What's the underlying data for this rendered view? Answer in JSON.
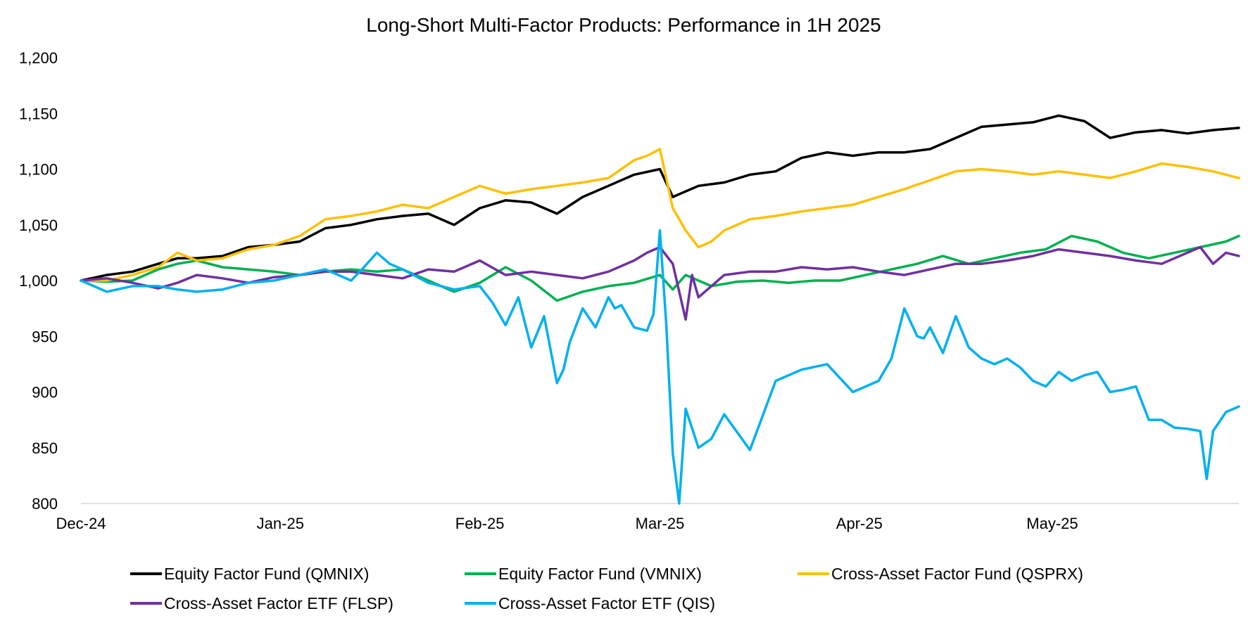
{
  "chart_data": {
    "type": "line",
    "title": "Long-Short Multi-Factor Products: Performance in 1H 2025",
    "xlabel": "",
    "ylabel": "",
    "ylim": [
      800,
      1200
    ],
    "yticks": [
      800,
      850,
      900,
      950,
      1000,
      1050,
      1100,
      1150,
      1200
    ],
    "ytick_labels": [
      "800",
      "850",
      "900",
      "950",
      "1,000",
      "1,050",
      "1,100",
      "1,150",
      "1,200"
    ],
    "xlim": [
      0,
      180
    ],
    "xticks": [
      {
        "x": 0,
        "label": "Dec-24"
      },
      {
        "x": 31,
        "label": "Jan-25"
      },
      {
        "x": 62,
        "label": "Feb-25"
      },
      {
        "x": 90,
        "label": "Mar-25"
      },
      {
        "x": 121,
        "label": "Apr-25"
      },
      {
        "x": 151,
        "label": "May-25"
      }
    ],
    "grid": false,
    "legend_position": "bottom",
    "series": [
      {
        "name": "Equity Factor Fund (QMNIX)",
        "color": "#000000",
        "x": [
          0,
          4,
          8,
          12,
          15,
          18,
          22,
          26,
          30,
          34,
          38,
          42,
          46,
          50,
          54,
          58,
          62,
          66,
          70,
          74,
          78,
          82,
          86,
          90,
          92,
          96,
          100,
          104,
          108,
          112,
          116,
          120,
          124,
          128,
          132,
          136,
          140,
          144,
          148,
          152,
          156,
          160,
          164,
          168,
          172,
          176,
          180
        ],
        "values": [
          1000,
          1005,
          1008,
          1015,
          1020,
          1020,
          1022,
          1030,
          1032,
          1035,
          1047,
          1050,
          1055,
          1058,
          1060,
          1050,
          1065,
          1072,
          1070,
          1060,
          1075,
          1085,
          1095,
          1100,
          1075,
          1085,
          1088,
          1095,
          1098,
          1110,
          1115,
          1112,
          1115,
          1115,
          1118,
          1128,
          1138,
          1140,
          1142,
          1148,
          1143,
          1128,
          1133,
          1135,
          1132,
          1135,
          1137
        ]
      },
      {
        "name": "Equity Factor Fund (VMNIX)",
        "color": "#00b050",
        "x": [
          0,
          4,
          8,
          12,
          15,
          18,
          22,
          26,
          30,
          34,
          38,
          42,
          46,
          50,
          54,
          58,
          62,
          66,
          70,
          74,
          78,
          82,
          86,
          90,
          92,
          94,
          98,
          102,
          106,
          110,
          114,
          118,
          122,
          126,
          130,
          134,
          138,
          142,
          146,
          150,
          154,
          158,
          162,
          166,
          170,
          174,
          178,
          180
        ],
        "values": [
          1000,
          999,
          1000,
          1010,
          1015,
          1018,
          1012,
          1010,
          1008,
          1005,
          1008,
          1010,
          1008,
          1010,
          1000,
          990,
          998,
          1012,
          1000,
          982,
          990,
          995,
          998,
          1005,
          992,
          1005,
          995,
          999,
          1000,
          998,
          1000,
          1000,
          1005,
          1010,
          1015,
          1022,
          1015,
          1020,
          1025,
          1028,
          1040,
          1035,
          1025,
          1020,
          1025,
          1030,
          1035,
          1040
        ]
      },
      {
        "name": "Cross-Asset Factor Fund (QSPRX)",
        "color": "#ffc000",
        "x": [
          0,
          4,
          8,
          12,
          15,
          18,
          22,
          26,
          30,
          34,
          38,
          42,
          46,
          50,
          54,
          58,
          62,
          66,
          70,
          74,
          78,
          82,
          86,
          88,
          90,
          92,
          94,
          96,
          98,
          100,
          104,
          108,
          112,
          116,
          120,
          124,
          128,
          132,
          136,
          140,
          144,
          148,
          152,
          156,
          160,
          164,
          168,
          172,
          176,
          180
        ],
        "values": [
          1000,
          1000,
          1005,
          1012,
          1025,
          1018,
          1020,
          1028,
          1032,
          1040,
          1055,
          1058,
          1062,
          1068,
          1065,
          1075,
          1085,
          1078,
          1082,
          1085,
          1088,
          1092,
          1108,
          1112,
          1118,
          1065,
          1045,
          1030,
          1035,
          1045,
          1055,
          1058,
          1062,
          1065,
          1068,
          1075,
          1082,
          1090,
          1098,
          1100,
          1098,
          1095,
          1098,
          1095,
          1092,
          1098,
          1105,
          1102,
          1098,
          1092
        ]
      },
      {
        "name": "Cross-Asset Factor ETF (FLSP)",
        "color": "#7030a0",
        "x": [
          0,
          4,
          8,
          12,
          15,
          18,
          22,
          26,
          30,
          34,
          38,
          42,
          46,
          50,
          54,
          58,
          62,
          66,
          70,
          74,
          78,
          82,
          86,
          88,
          90,
          92,
          94,
          95,
          96,
          100,
          104,
          108,
          112,
          116,
          120,
          124,
          128,
          132,
          136,
          140,
          144,
          148,
          152,
          156,
          160,
          164,
          168,
          172,
          174,
          176,
          178,
          180
        ],
        "values": [
          1000,
          1002,
          998,
          993,
          998,
          1005,
          1002,
          998,
          1003,
          1005,
          1008,
          1008,
          1005,
          1002,
          1010,
          1008,
          1018,
          1005,
          1008,
          1005,
          1002,
          1008,
          1018,
          1025,
          1030,
          1015,
          965,
          1005,
          985,
          1005,
          1008,
          1008,
          1012,
          1010,
          1012,
          1008,
          1005,
          1010,
          1015,
          1015,
          1018,
          1022,
          1028,
          1025,
          1022,
          1018,
          1015,
          1025,
          1030,
          1015,
          1025,
          1022
        ]
      },
      {
        "name": "Cross-Asset Factor ETF (QIS)",
        "color": "#00b0f0",
        "x": [
          0,
          4,
          8,
          12,
          15,
          18,
          22,
          26,
          30,
          34,
          38,
          42,
          44,
          46,
          48,
          50,
          54,
          58,
          62,
          64,
          66,
          68,
          70,
          72,
          74,
          75,
          76,
          78,
          80,
          82,
          83,
          84,
          86,
          88,
          89,
          90,
          91,
          92,
          93,
          94,
          96,
          98,
          100,
          104,
          108,
          112,
          116,
          120,
          124,
          126,
          128,
          130,
          131,
          132,
          134,
          136,
          138,
          140,
          142,
          144,
          146,
          148,
          150,
          152,
          154,
          156,
          158,
          160,
          162,
          164,
          166,
          168,
          170,
          172,
          174,
          175,
          176,
          178,
          180
        ],
        "values": [
          1000,
          990,
          995,
          995,
          992,
          990,
          992,
          998,
          1000,
          1005,
          1010,
          1000,
          1012,
          1025,
          1015,
          1010,
          998,
          992,
          995,
          980,
          960,
          985,
          940,
          968,
          908,
          920,
          945,
          975,
          958,
          985,
          975,
          978,
          958,
          955,
          970,
          1045,
          960,
          845,
          800,
          885,
          850,
          858,
          880,
          848,
          910,
          920,
          925,
          900,
          910,
          930,
          975,
          950,
          948,
          958,
          935,
          968,
          940,
          930,
          925,
          930,
          922,
          910,
          905,
          918,
          910,
          915,
          918,
          900,
          902,
          905,
          875,
          875,
          868,
          867,
          865,
          822,
          865,
          882,
          887
        ]
      }
    ]
  }
}
